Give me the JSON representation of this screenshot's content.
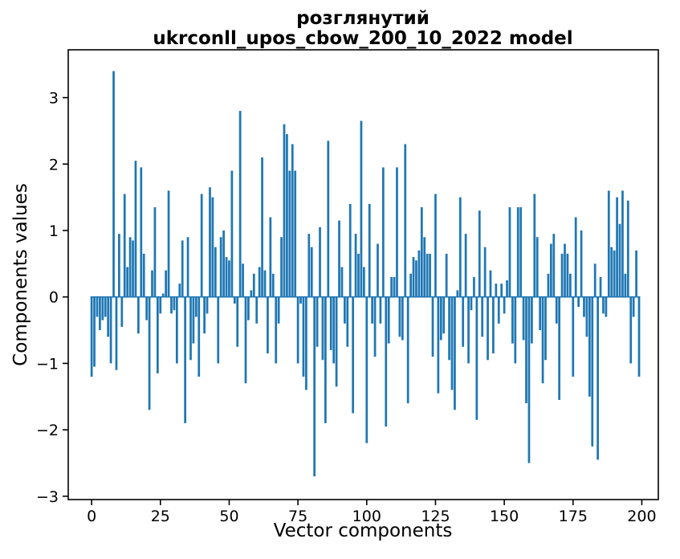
{
  "window": {
    "background_color": "#ffffff"
  },
  "title": {
    "line1": "розглянутий",
    "line2": "ukrconll_upos_cbow_200_10_2022 model"
  },
  "chart_data": {
    "type": "bar",
    "title": "розглянутий\nukrconll_upos_cbow_200_10_2022 model",
    "xlabel": "Vector components",
    "ylabel": "Components values",
    "bar_color": "#1f77b4",
    "text_color": "#000000",
    "grid": false,
    "legend": null,
    "x_ticks": [
      0,
      25,
      50,
      75,
      100,
      125,
      150,
      175,
      200
    ],
    "y_ticks": [
      -3,
      -2,
      -1,
      0,
      1,
      2,
      3
    ],
    "xlim": [
      -8.5,
      206
    ],
    "ylim": [
      -3.05,
      3.72
    ],
    "x_is_component_index": true,
    "n_components": 200,
    "values": [
      -1.2,
      -1.05,
      -0.3,
      -0.5,
      -0.35,
      -0.3,
      -0.6,
      -1.0,
      3.4,
      -1.1,
      0.95,
      -0.45,
      1.55,
      0.45,
      0.9,
      0.85,
      2.05,
      -0.55,
      1.95,
      0.65,
      -0.35,
      -1.7,
      0.4,
      1.35,
      -1.15,
      -0.25,
      0.05,
      0.4,
      1.6,
      -0.25,
      -0.2,
      -1.0,
      0.2,
      0.85,
      -1.9,
      0.9,
      -0.95,
      -0.7,
      -0.3,
      -1.2,
      1.55,
      -0.55,
      -0.25,
      1.65,
      1.5,
      0.75,
      -1.0,
      0.9,
      1.0,
      0.6,
      0.55,
      1.9,
      -0.1,
      -0.75,
      2.8,
      0.5,
      -1.3,
      -0.35,
      0.1,
      0.35,
      -0.4,
      0.45,
      2.1,
      0.4,
      -0.85,
      1.2,
      0.35,
      -1.0,
      -0.4,
      0.9,
      2.6,
      2.45,
      1.9,
      2.3,
      1.9,
      -1.0,
      -0.1,
      -1.2,
      -1.4,
      0.95,
      0.75,
      -2.7,
      -0.75,
      1.05,
      -0.95,
      -1.9,
      2.35,
      -0.8,
      -1.0,
      -1.35,
      1.15,
      0.45,
      -0.4,
      -0.75,
      1.4,
      -1.75,
      0.95,
      0.65,
      2.65,
      0.45,
      -2.2,
      1.4,
      -0.4,
      -0.9,
      0.8,
      -0.4,
      1.95,
      -1.95,
      -0.7,
      0.3,
      0.3,
      1.95,
      -0.6,
      -0.65,
      2.3,
      -1.6,
      0.35,
      0.6,
      0.55,
      0.7,
      1.35,
      0.9,
      0.65,
      0.65,
      -0.9,
      1.55,
      -1.45,
      -0.65,
      -0.55,
      0.65,
      -0.95,
      -1.4,
      -1.7,
      0.1,
      1.5,
      -0.75,
      0.95,
      -1.0,
      -0.2,
      0.3,
      -1.85,
      1.3,
      -0.6,
      0.75,
      -0.95,
      0.4,
      -0.85,
      0.2,
      -0.4,
      0.2,
      -0.25,
      0.25,
      1.35,
      -0.7,
      -1.0,
      1.35,
      1.35,
      -0.65,
      -1.6,
      -2.5,
      -0.7,
      1.55,
      0.9,
      -0.5,
      -1.3,
      -0.95,
      0.35,
      0.8,
      0.95,
      -0.4,
      -1.55,
      0.65,
      0.8,
      0.65,
      0.35,
      -1.2,
      1.2,
      -0.15,
      1.0,
      -0.3,
      -0.6,
      -1.5,
      -2.25,
      0.5,
      -2.45,
      0.3,
      -0.25,
      -0.3,
      1.6,
      0.75,
      0.7,
      1.5,
      1.1,
      1.6,
      0.35,
      1.45,
      -1.0,
      -0.3,
      0.7,
      -1.2
    ]
  }
}
